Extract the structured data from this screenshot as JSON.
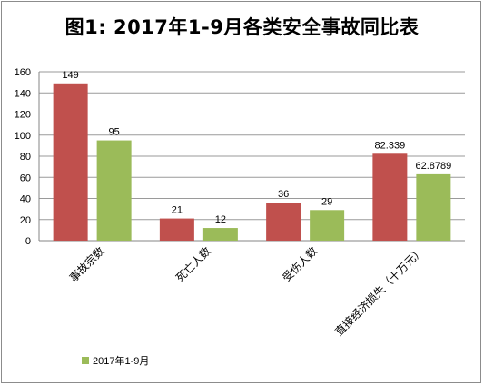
{
  "chart_data": {
    "type": "bar",
    "title": "图1:  2017年1-9月各类安全事故同比表",
    "categories": [
      "事故宗数",
      "死亡人数",
      "受伤人数",
      "直接经济损失（十万元）"
    ],
    "series": [
      {
        "values": [
          149,
          21,
          36,
          82.339
        ],
        "labels": [
          "149",
          "21",
          "36",
          "82.339"
        ],
        "color": "#c0504d"
      },
      {
        "name": "2017年1-9月",
        "values": [
          95,
          12,
          29,
          62.8789
        ],
        "labels": [
          "95",
          "12",
          "29",
          "62.8789"
        ],
        "color": "#9bbb59"
      }
    ],
    "ylim": [
      0,
      160
    ],
    "yticks": [
      0,
      20,
      40,
      60,
      80,
      100,
      120,
      140,
      160
    ],
    "grid": true,
    "legend_position": "bottom-left"
  }
}
